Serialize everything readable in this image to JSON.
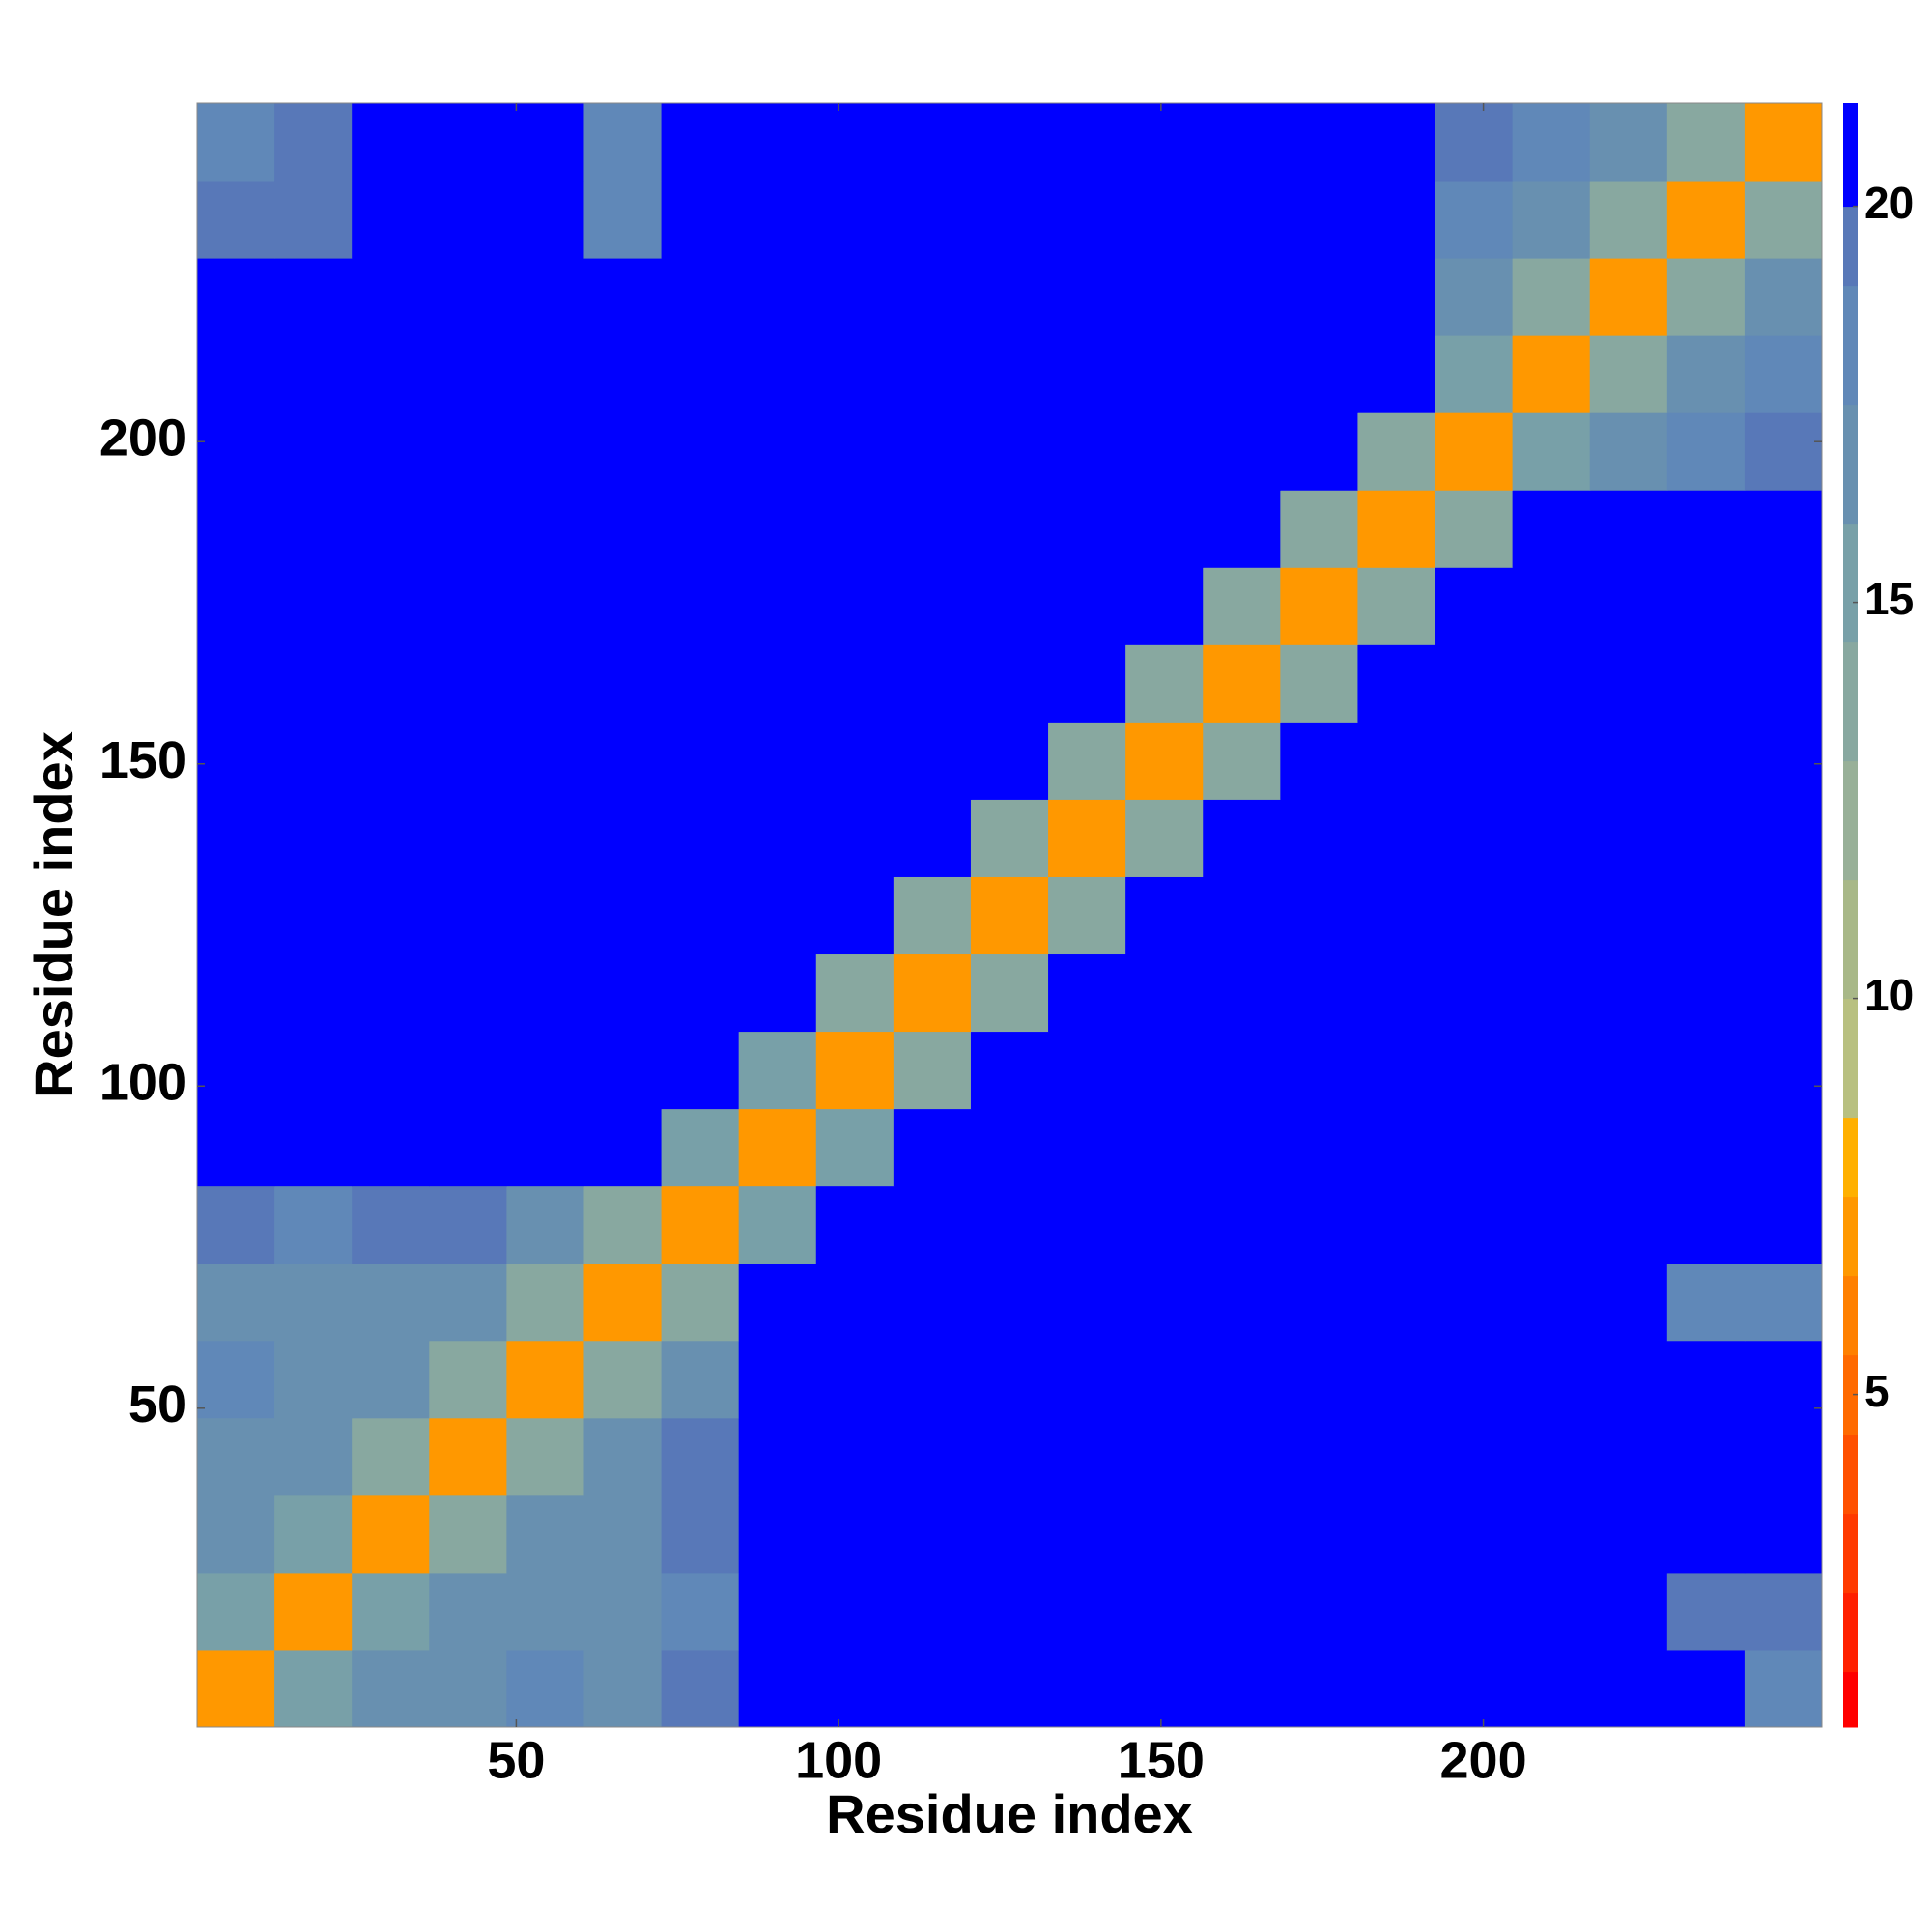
{
  "chart_data": {
    "type": "heatmap",
    "xlabel": "Residue index",
    "ylabel": "Residue index",
    "bins": [
      0.5,
      12.5,
      24.5,
      36.5,
      48.5,
      60.5,
      72.5,
      84.5,
      96.5,
      108.5,
      120.5,
      132.5,
      144.5,
      156.5,
      168.5,
      180.5,
      192.5,
      204.5,
      216.5,
      228.5,
      240.5,
      252.5
    ],
    "xlim": [
      0.5,
      252.5
    ],
    "ylim": [
      0.5,
      252.5
    ],
    "xticks": [
      50,
      100,
      150,
      200
    ],
    "yticks": [
      50,
      100,
      150,
      200
    ],
    "values": [
      [
        7,
        15,
        16,
        17,
        18,
        17,
        19,
        21,
        21,
        21,
        21,
        21,
        21,
        21,
        21,
        21,
        21,
        21,
        21,
        20,
        18
      ],
      [
        15,
        7,
        15,
        16,
        16,
        17,
        18,
        21,
        21,
        21,
        21,
        21,
        21,
        21,
        21,
        21,
        21,
        21,
        21,
        19,
        19
      ],
      [
        16,
        15,
        7,
        14,
        16,
        17,
        19,
        21,
        21,
        21,
        21,
        21,
        21,
        21,
        21,
        21,
        21,
        21,
        21,
        20,
        20
      ],
      [
        17,
        16,
        14,
        7,
        14,
        16,
        19,
        21,
        21,
        21,
        21,
        21,
        21,
        21,
        21,
        21,
        21,
        21,
        21,
        20,
        21
      ],
      [
        18,
        16,
        16,
        14,
        7,
        13,
        17,
        21,
        21,
        21,
        21,
        21,
        21,
        21,
        21,
        21,
        21,
        21,
        21,
        21,
        21
      ],
      [
        17,
        17,
        17,
        16,
        13,
        7,
        14,
        21,
        21,
        21,
        21,
        21,
        21,
        21,
        21,
        21,
        21,
        21,
        21,
        18,
        18
      ],
      [
        19,
        18,
        19,
        19,
        17,
        14,
        7,
        15,
        21,
        21,
        21,
        21,
        21,
        21,
        21,
        21,
        21,
        21,
        21,
        21,
        21
      ],
      [
        21,
        21,
        21,
        21,
        21,
        21,
        15,
        7,
        15,
        21,
        21,
        21,
        21,
        21,
        21,
        21,
        21,
        21,
        21,
        21,
        21
      ],
      [
        21,
        21,
        21,
        21,
        21,
        21,
        21,
        15,
        7,
        14,
        21,
        21,
        21,
        21,
        21,
        21,
        21,
        21,
        21,
        21,
        21
      ],
      [
        21,
        21,
        21,
        21,
        21,
        21,
        21,
        21,
        14,
        7,
        14,
        21,
        21,
        21,
        21,
        21,
        21,
        20,
        21,
        21,
        21
      ],
      [
        21,
        21,
        21,
        21,
        21,
        21,
        21,
        21,
        21,
        14,
        7,
        14,
        21,
        21,
        21,
        21,
        21,
        21,
        21,
        21,
        21
      ],
      [
        21,
        21,
        21,
        21,
        21,
        21,
        21,
        21,
        21,
        21,
        14,
        7,
        14,
        21,
        21,
        21,
        21,
        21,
        21,
        21,
        21
      ],
      [
        21,
        21,
        21,
        21,
        21,
        21,
        21,
        21,
        21,
        21,
        21,
        14,
        7,
        14,
        21,
        21,
        21,
        21,
        21,
        21,
        21
      ],
      [
        21,
        21,
        21,
        21,
        21,
        21,
        21,
        21,
        21,
        21,
        21,
        21,
        14,
        7,
        14,
        21,
        21,
        21,
        21,
        21,
        21
      ],
      [
        21,
        21,
        21,
        21,
        21,
        21,
        21,
        21,
        21,
        21,
        21,
        21,
        21,
        14,
        7,
        14,
        21,
        21,
        21,
        21,
        21
      ],
      [
        21,
        21,
        21,
        21,
        21,
        21,
        21,
        21,
        21,
        21,
        21,
        21,
        21,
        21,
        14,
        7,
        14,
        20,
        21,
        21,
        21
      ],
      [
        21,
        21,
        21,
        21,
        21,
        21,
        21,
        21,
        21,
        21,
        21,
        21,
        21,
        21,
        21,
        14,
        7,
        15,
        17,
        18,
        19
      ],
      [
        21,
        21,
        21,
        21,
        21,
        21,
        21,
        21,
        21,
        20,
        21,
        21,
        21,
        21,
        21,
        21,
        15,
        7,
        14,
        16,
        18
      ],
      [
        21,
        21,
        21,
        21,
        21,
        21,
        21,
        21,
        21,
        21,
        21,
        21,
        21,
        21,
        21,
        21,
        17,
        14,
        7,
        14,
        17
      ],
      [
        19,
        19,
        20,
        21,
        21,
        18,
        21,
        21,
        21,
        21,
        21,
        21,
        21,
        21,
        21,
        21,
        18,
        16,
        14,
        7,
        14
      ],
      [
        18,
        19,
        20,
        21,
        21,
        18,
        21,
        21,
        21,
        21,
        21,
        21,
        21,
        21,
        21,
        21,
        19,
        18,
        17,
        14,
        7
      ]
    ],
    "levels": [
      0.8,
      1.5,
      2.5,
      3.5,
      4.5,
      5.5,
      6.5,
      7.5,
      8.5,
      10,
      11.5,
      13,
      14.5,
      16,
      17.5,
      19,
      20,
      21.3
    ],
    "level_colors": [
      "#ff0000",
      "#ff2000",
      "#ff3a00",
      "#ff5000",
      "#ff6a00",
      "#ff8000",
      "#ff9800",
      "#ffb000",
      "#b8c080",
      "#a8b888",
      "#98b098",
      "#88a8a0",
      "#78a0a8",
      "#6890b0",
      "#6088b8",
      "#5878b8",
      "#0000ff"
    ],
    "cticks": [
      5,
      10,
      15,
      20
    ]
  }
}
